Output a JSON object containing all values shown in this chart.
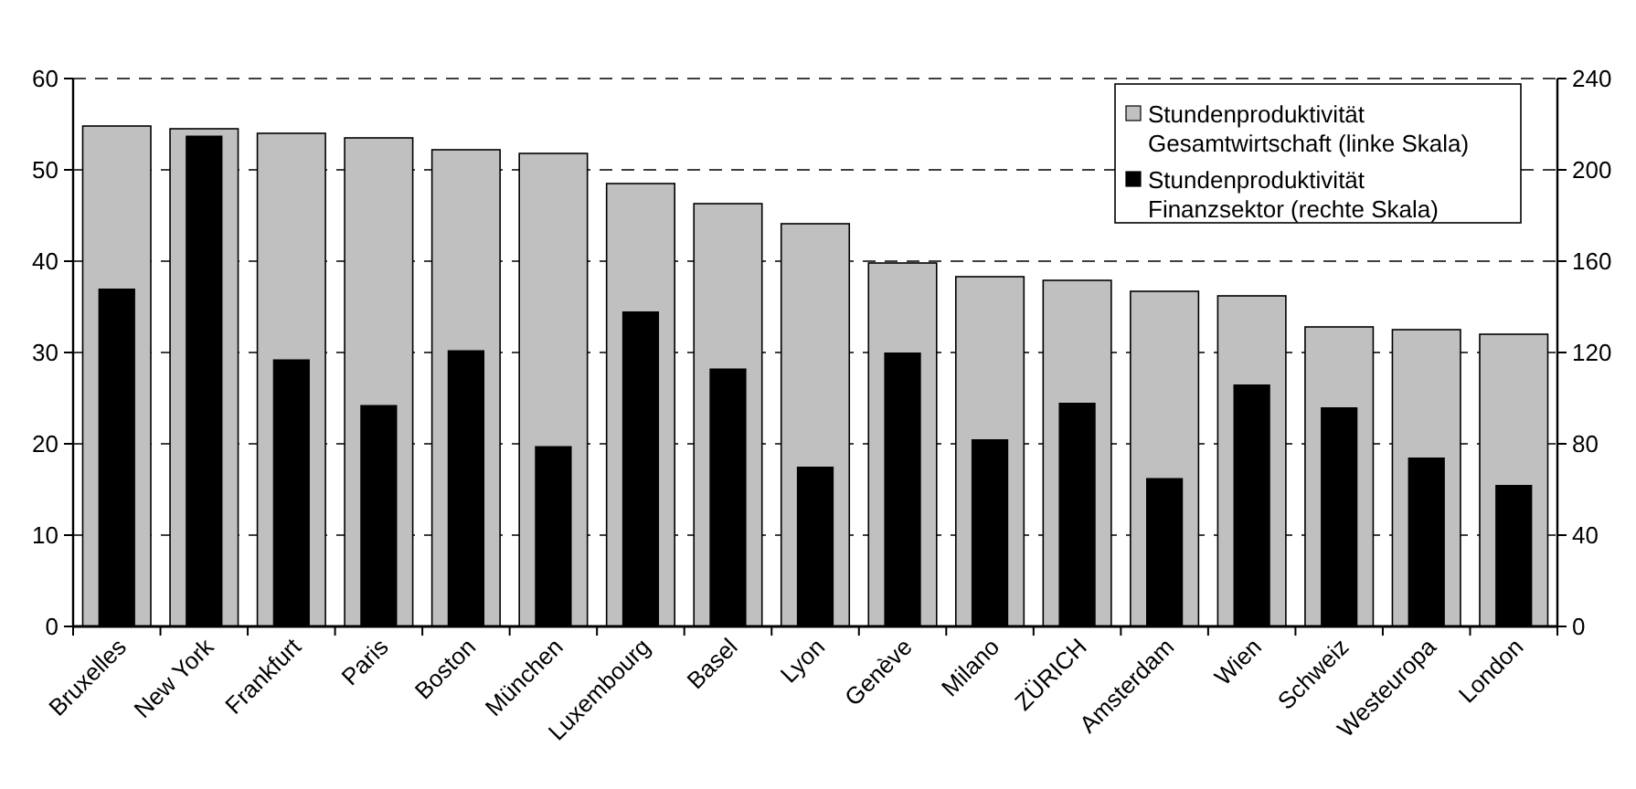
{
  "chart_data": {
    "type": "bar",
    "categories": [
      "Bruxelles",
      "New York",
      "Frankfurt",
      "Paris",
      "Boston",
      "München",
      "Luxembourg",
      "Basel",
      "Lyon",
      "Genève",
      "Milano",
      "ZÜRICH",
      "Amsterdam",
      "Wien",
      "Schweiz",
      "Westeuropa",
      "London"
    ],
    "series": [
      {
        "name": "Stundenproduktivität Gesamtwirtschaft (linke Skala)",
        "color": "#c0c0c0",
        "values": [
          54.8,
          54.5,
          54.0,
          53.5,
          52.2,
          51.8,
          48.5,
          46.3,
          44.1,
          39.8,
          38.3,
          37.9,
          36.7,
          36.2,
          32.8,
          32.5,
          32.0
        ]
      },
      {
        "name": "Stundenproduktivität Finanzsektor (rechte Skala)",
        "color": "#000000",
        "axis": "y2",
        "values": [
          148,
          215,
          117,
          97,
          121,
          79,
          138,
          113,
          70,
          120,
          82,
          98,
          65,
          106,
          96,
          74,
          62
        ]
      }
    ],
    "ylim": [
      0,
      60
    ],
    "yticks": [
      0,
      10,
      20,
      30,
      40,
      50,
      60
    ],
    "y2lim": [
      0,
      240
    ],
    "y2ticks": [
      0,
      40,
      80,
      120,
      160,
      200,
      240
    ],
    "grid": "y",
    "legend": "top right"
  }
}
